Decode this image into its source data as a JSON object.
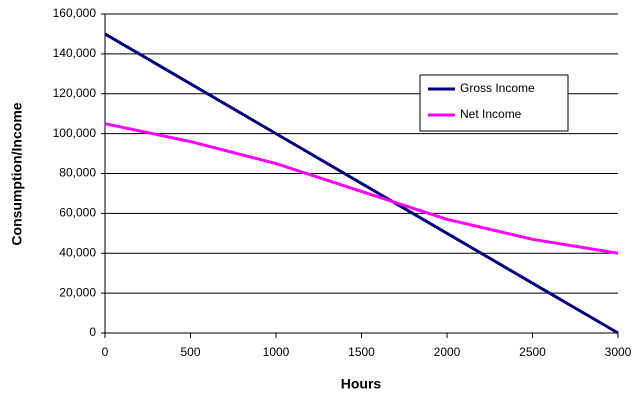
{
  "chart_data": {
    "type": "line",
    "x_label": "Hours",
    "y_label": "Consumption/Income",
    "x": [
      0,
      500,
      1000,
      1500,
      2000,
      2500,
      3000
    ],
    "series": [
      {
        "name": "Gross Income",
        "color": "#000080",
        "values": [
          150000,
          125000,
          100000,
          75000,
          50000,
          25000,
          0
        ]
      },
      {
        "name": "Net Income",
        "color": "#ff00ff",
        "values": [
          105000,
          96000,
          85000,
          71000,
          57000,
          47000,
          40000
        ]
      }
    ],
    "xlim": [
      0,
      3000
    ],
    "xticks": [
      0,
      500,
      1000,
      1500,
      2000,
      2500,
      3000
    ],
    "ylim": [
      0,
      160000
    ],
    "yticks": [
      0,
      {
        "value": 20000,
        "label": "20,000"
      },
      {
        "value": 40000,
        "label": "40,000"
      },
      {
        "value": 60000,
        "label": "60,000"
      },
      {
        "value": 80000,
        "label": "80,000"
      },
      {
        "value": 100000,
        "label": "100,000"
      },
      {
        "value": 120000,
        "label": "120,000"
      },
      {
        "value": 140000,
        "label": "140,000"
      },
      {
        "value": 160000,
        "label": "160,000"
      }
    ],
    "grid": true,
    "legend": "right"
  }
}
